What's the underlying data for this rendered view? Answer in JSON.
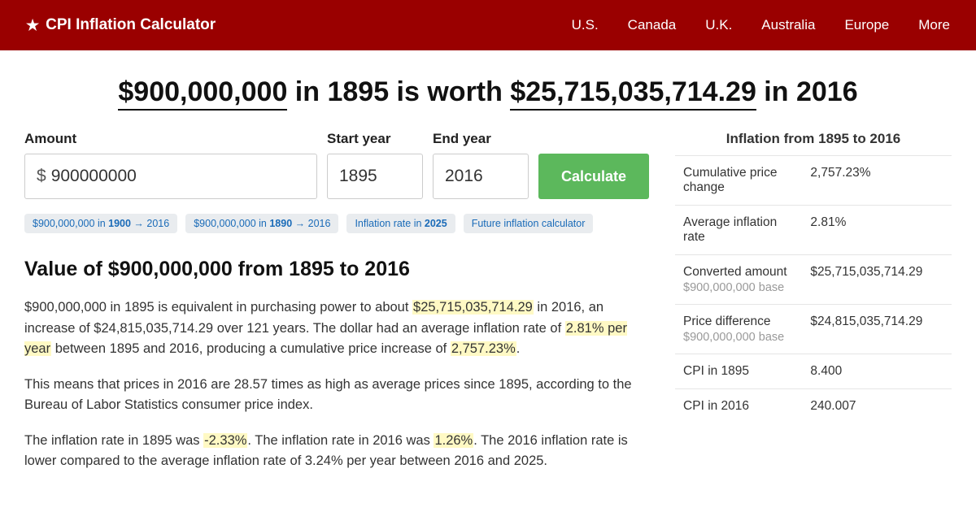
{
  "header": {
    "brand": "CPI Inflation Calculator",
    "nav": [
      "U.S.",
      "Canada",
      "U.K.",
      "Australia",
      "Europe",
      "More"
    ]
  },
  "headline": {
    "amount_from": "$900,000,000",
    "mid1": " in 1895 is worth ",
    "amount_to": "$25,715,035,714.29",
    "mid2": " in 2016"
  },
  "form": {
    "amount_label": "Amount",
    "amount_value": "900000000",
    "start_label": "Start year",
    "start_value": "1895",
    "end_label": "End year",
    "end_value": "2016",
    "calculate": "Calculate"
  },
  "chips": [
    {
      "pre": "$900,000,000 in ",
      "bold": "1900",
      "post": " → 2016"
    },
    {
      "pre": "$900,000,000 in ",
      "bold": "1890",
      "post": " → 2016"
    },
    {
      "pre": "Inflation rate in ",
      "bold": "2025",
      "post": ""
    },
    {
      "pre": "Future inflation calculator",
      "bold": "",
      "post": ""
    }
  ],
  "section_title": "Value of $900,000,000 from 1895 to 2016",
  "para1": {
    "t1": "$900,000,000 in 1895 is equivalent in purchasing power to about ",
    "h1": "$25,715,035,714.29",
    "t2": " in 2016, an increase of $24,815,035,714.29 over 121 years. The dollar had an average inflation rate of ",
    "h2": "2.81% per year",
    "t3": " between 1895 and 2016, producing a cumulative price increase of ",
    "h3": "2,757.23%",
    "t4": "."
  },
  "para2": "This means that prices in 2016 are 28.57 times as high as average prices since 1895, according to the Bureau of Labor Statistics consumer price index.",
  "para3": {
    "t1": "The inflation rate in 1895 was ",
    "h1": "-2.33%",
    "t2": ". The inflation rate in 2016 was ",
    "h2": "1.26%",
    "t3": ". The 2016 inflation rate is lower compared to the average inflation rate of 3.24% per year between 2016 and 2025."
  },
  "info": {
    "title": "Inflation from 1895 to 2016",
    "rows": [
      {
        "label": "Cumulative price change",
        "sub": "",
        "val": "2,757.23%"
      },
      {
        "label": "Average inflation rate",
        "sub": "",
        "val": "2.81%"
      },
      {
        "label": "Converted amount",
        "sub": "$900,000,000 base",
        "val": "$25,715,035,714.29"
      },
      {
        "label": "Price difference",
        "sub": "$900,000,000 base",
        "val": "$24,815,035,714.29"
      },
      {
        "label": "CPI in 1895",
        "sub": "",
        "val": "8.400"
      },
      {
        "label": "CPI in 2016",
        "sub": "",
        "val": "240.007"
      }
    ]
  }
}
